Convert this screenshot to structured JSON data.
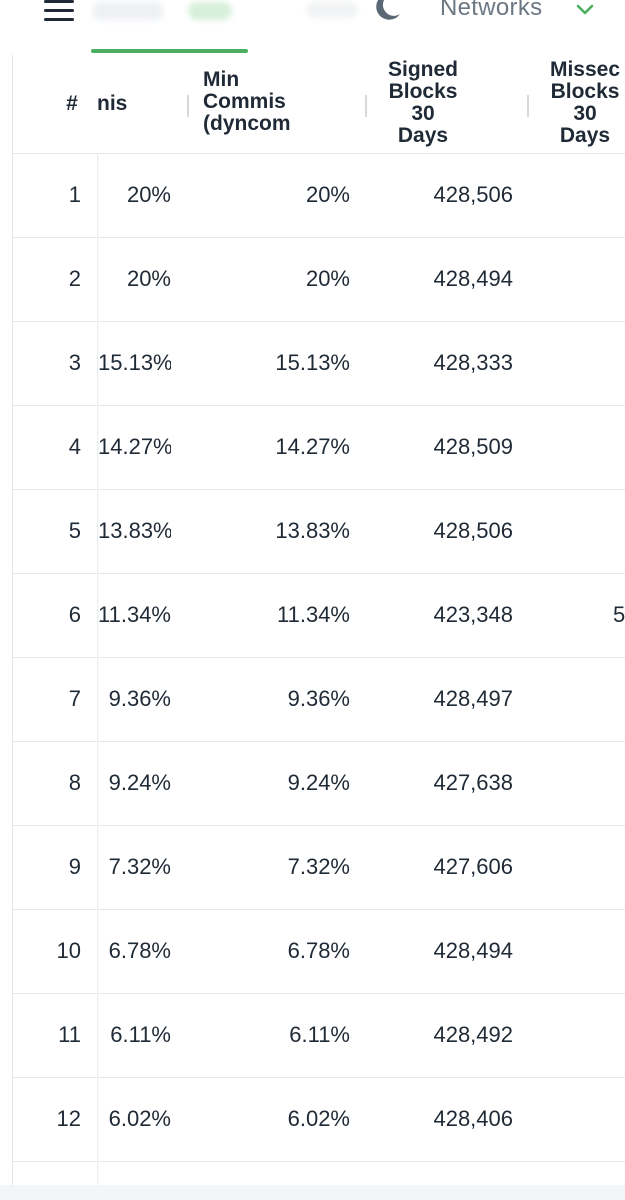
{
  "header": {
    "networks_label": "Networks"
  },
  "table": {
    "columns": {
      "num": "#",
      "commission": "nis",
      "min_commission": "Min\nCommis\n(dyncom",
      "signed_blocks": "Signed\nBlocks\n30\nDays",
      "missed_blocks": "Missec\nBlocks\n30\nDays"
    },
    "rows": [
      {
        "num": "1",
        "commission": "20%",
        "min_commission": "20%",
        "signed": "428,506",
        "missed": ""
      },
      {
        "num": "2",
        "commission": "20%",
        "min_commission": "20%",
        "signed": "428,494",
        "missed": ""
      },
      {
        "num": "3",
        "commission": "15.13%",
        "min_commission": "15.13%",
        "signed": "428,333",
        "missed": ""
      },
      {
        "num": "4",
        "commission": "14.27%",
        "min_commission": "14.27%",
        "signed": "428,509",
        "missed": ""
      },
      {
        "num": "5",
        "commission": "13.83%",
        "min_commission": "13.83%",
        "signed": "428,506",
        "missed": ""
      },
      {
        "num": "6",
        "commission": "11.34%",
        "min_commission": "11.34%",
        "signed": "423,348",
        "missed": "5"
      },
      {
        "num": "7",
        "commission": "9.36%",
        "min_commission": "9.36%",
        "signed": "428,497",
        "missed": ""
      },
      {
        "num": "8",
        "commission": "9.24%",
        "min_commission": "9.24%",
        "signed": "427,638",
        "missed": ""
      },
      {
        "num": "9",
        "commission": "7.32%",
        "min_commission": "7.32%",
        "signed": "427,606",
        "missed": ""
      },
      {
        "num": "10",
        "commission": "6.78%",
        "min_commission": "6.78%",
        "signed": "428,494",
        "missed": ""
      },
      {
        "num": "11",
        "commission": "6.11%",
        "min_commission": "6.11%",
        "signed": "428,492",
        "missed": ""
      },
      {
        "num": "12",
        "commission": "6.02%",
        "min_commission": "6.02%",
        "signed": "428,406",
        "missed": ""
      }
    ]
  },
  "colors": {
    "accent": "#4caf60",
    "text": "#1f2a36",
    "muted": "#6b7884",
    "divider": "#e3e6ea"
  },
  "icons": {
    "menu": "hamburger-menu-icon",
    "theme": "moon-icon",
    "dropdown": "chevron-down-icon"
  }
}
